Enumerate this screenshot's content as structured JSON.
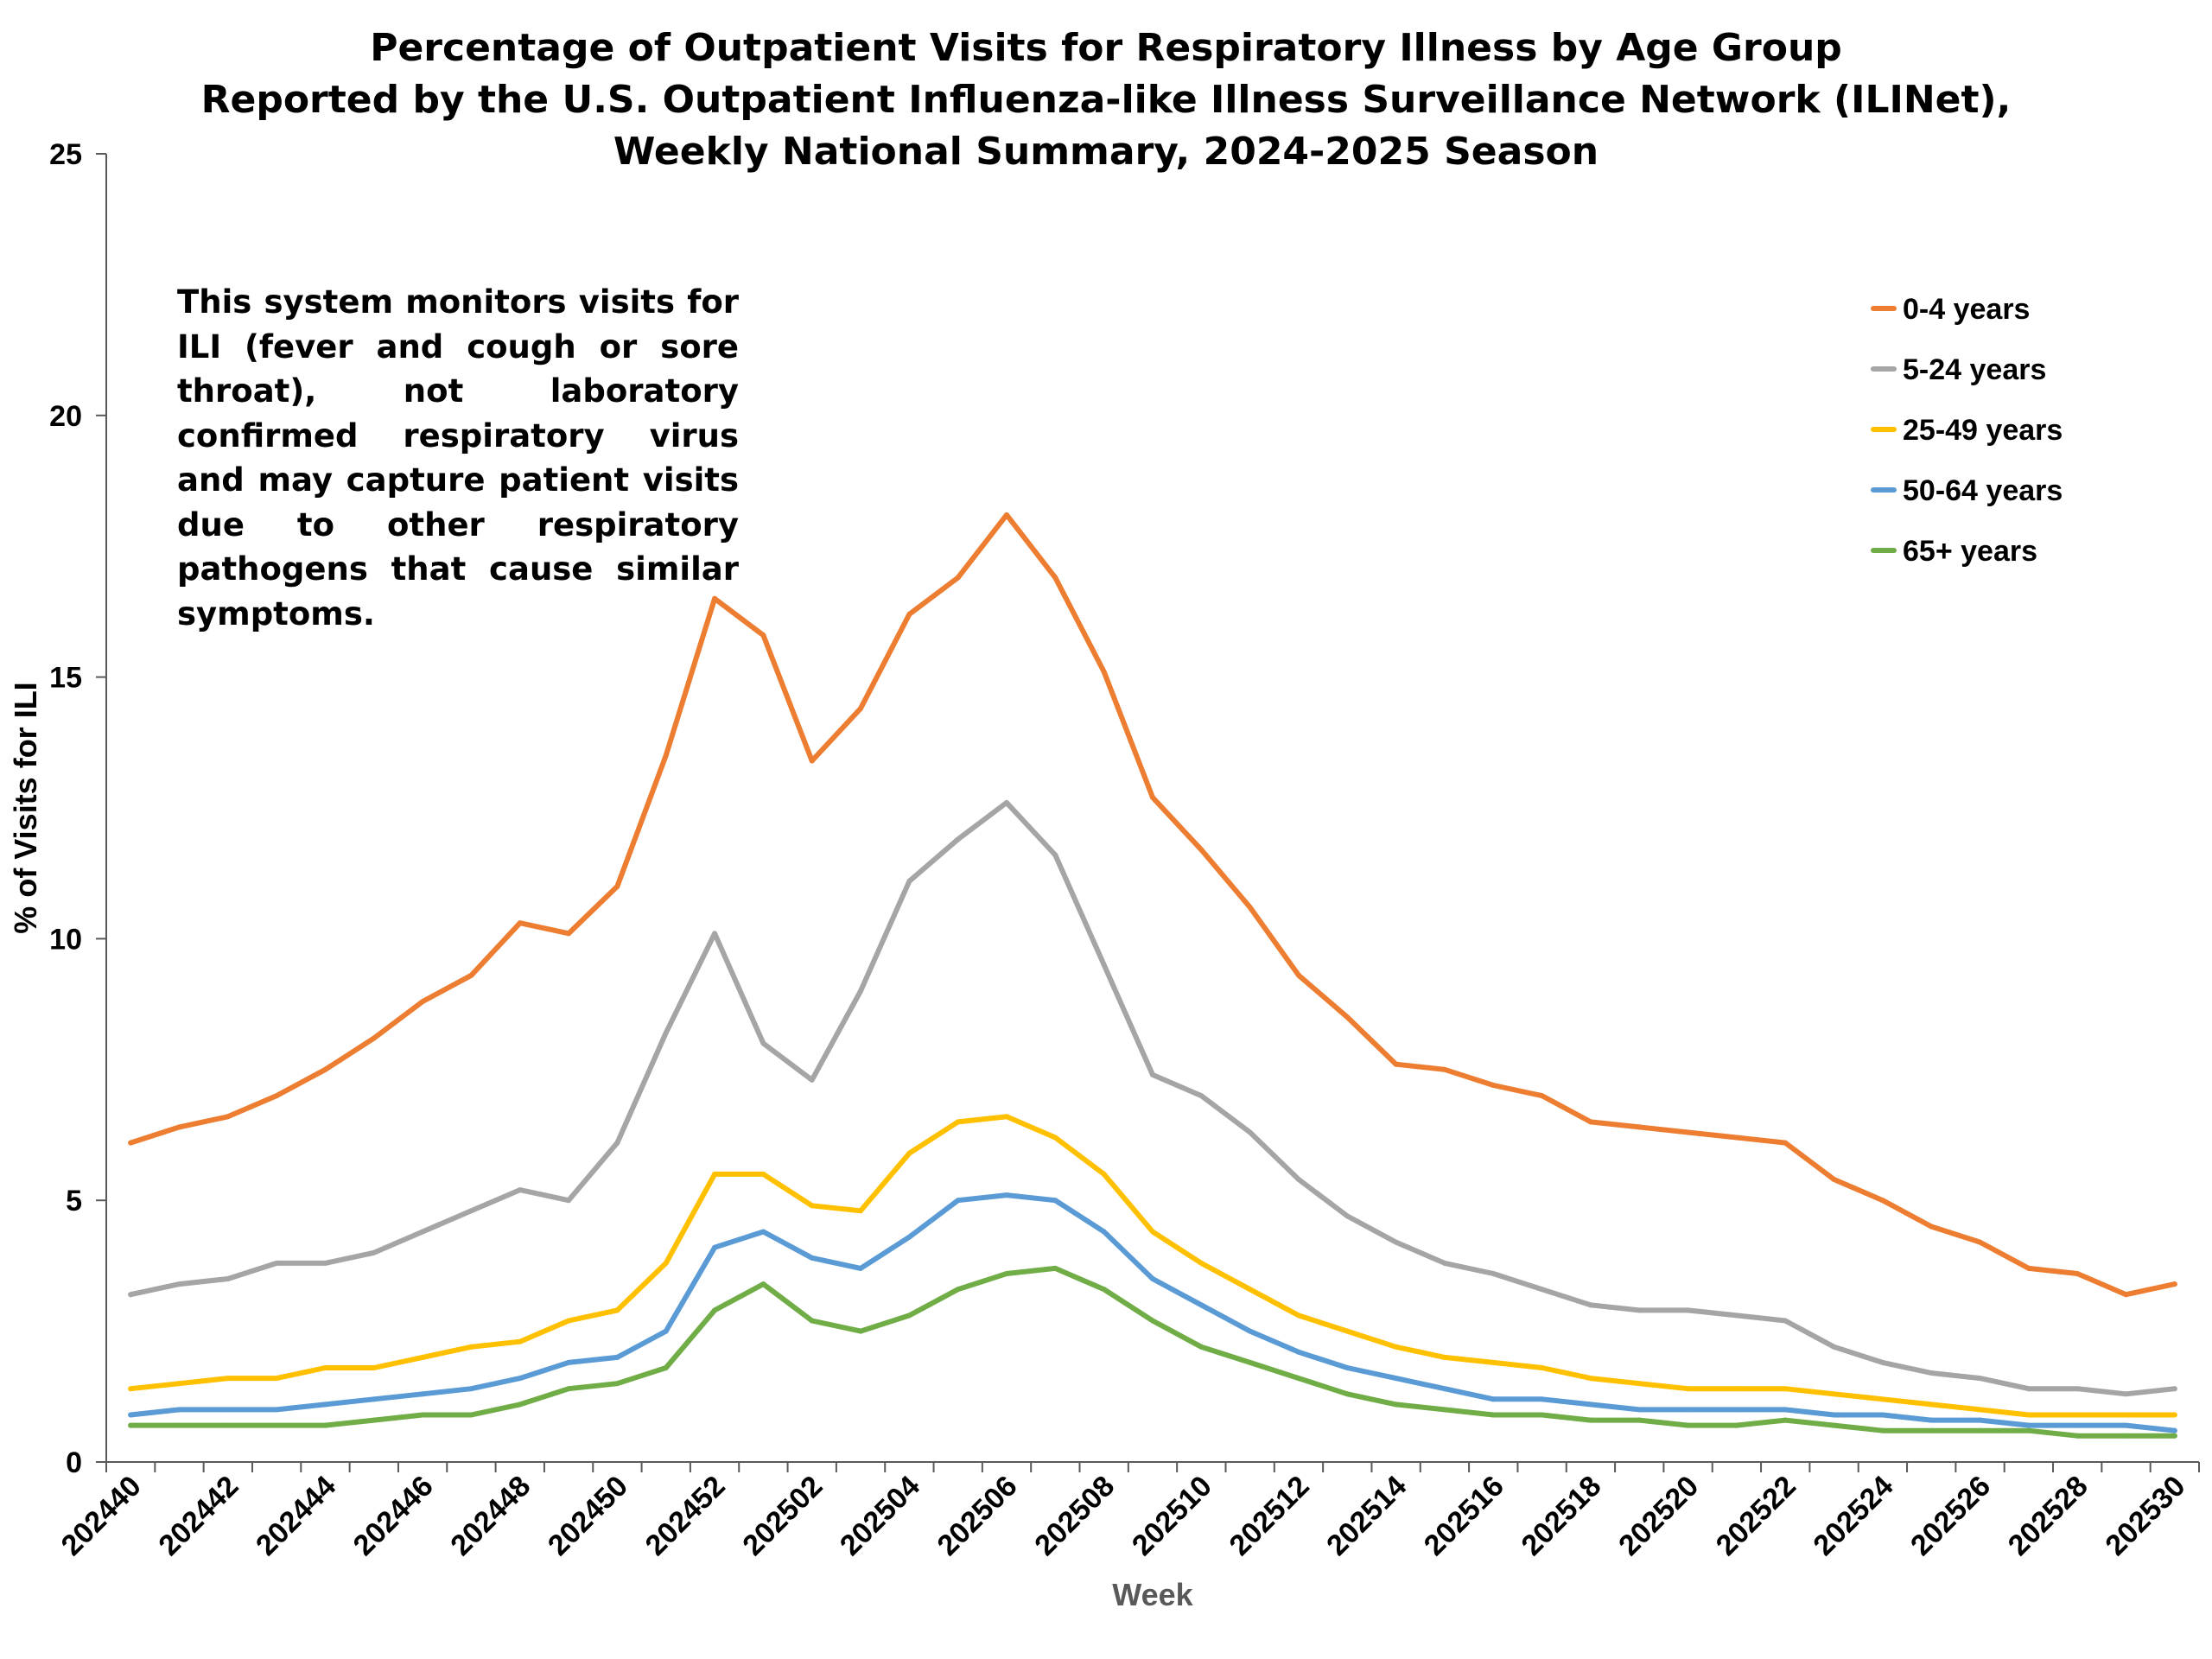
{
  "chart_data": {
    "type": "line",
    "title": [
      "Percentage of Outpatient Visits for Respiratory Illness by Age Group",
      "Reported by the U.S. Outpatient Influenza-like Illness Surveillance Network (ILINet),",
      "Weekly National Summary, 2024-2025 Season"
    ],
    "xlabel": "Week",
    "ylabel": "% of Visits for ILI",
    "ylim": [
      0,
      25
    ],
    "yticks": [
      "0",
      "5",
      "10",
      "15",
      "20",
      "25"
    ],
    "x": [
      "202440",
      "202441",
      "202442",
      "202443",
      "202444",
      "202445",
      "202446",
      "202447",
      "202448",
      "202449",
      "202450",
      "202451",
      "202452",
      "202501",
      "202502",
      "202503",
      "202504",
      "202505",
      "202506",
      "202507",
      "202508",
      "202509",
      "202510",
      "202511",
      "202512",
      "202513",
      "202514",
      "202515",
      "202516",
      "202517",
      "202518",
      "202519",
      "202520",
      "202521",
      "202522",
      "202523",
      "202524",
      "202525",
      "202526",
      "202527",
      "202528",
      "202529",
      "202530"
    ],
    "xticklabels": [
      "202440",
      "202442",
      "202444",
      "202446",
      "202448",
      "202450",
      "202452",
      "202502",
      "202504",
      "202506",
      "202508",
      "202510",
      "202512",
      "202514",
      "202516",
      "202518",
      "202520",
      "202522",
      "202524",
      "202526",
      "202528",
      "202530"
    ],
    "legend_position": "top-right",
    "annotation": "This system monitors visits for ILI (fever and cough or sore throat), not laboratory confirmed respiratory virus and may capture patient visits due to other respiratory pathogens that cause similar symptoms.",
    "series": [
      {
        "name": "0-4 years",
        "color": "#ED7D31",
        "values": [
          6.1,
          6.4,
          6.6,
          7.0,
          7.5,
          8.1,
          8.8,
          9.3,
          10.3,
          10.1,
          11.0,
          13.5,
          16.5,
          15.8,
          13.4,
          14.4,
          16.2,
          16.9,
          18.1,
          16.9,
          15.1,
          12.7,
          11.7,
          10.6,
          9.3,
          8.5,
          7.6,
          7.5,
          7.2,
          7.0,
          6.5,
          6.4,
          6.3,
          6.2,
          6.1,
          5.4,
          5.0,
          4.5,
          4.2,
          3.7,
          3.6,
          3.2,
          3.4
        ]
      },
      {
        "name": "5-24 years",
        "color": "#A5A5A5",
        "values": [
          3.2,
          3.4,
          3.5,
          3.8,
          3.8,
          4.0,
          4.4,
          4.8,
          5.2,
          5.0,
          6.1,
          8.2,
          10.1,
          8.0,
          7.3,
          9.0,
          11.1,
          11.9,
          12.6,
          11.6,
          9.5,
          7.4,
          7.0,
          6.3,
          5.4,
          4.7,
          4.2,
          3.8,
          3.6,
          3.3,
          3.0,
          2.9,
          2.9,
          2.8,
          2.7,
          2.2,
          1.9,
          1.7,
          1.6,
          1.4,
          1.4,
          1.3,
          1.4
        ]
      },
      {
        "name": "25-49 years",
        "color": "#FFC000",
        "values": [
          1.4,
          1.5,
          1.6,
          1.6,
          1.8,
          1.8,
          2.0,
          2.2,
          2.3,
          2.7,
          2.9,
          3.8,
          5.5,
          5.5,
          4.9,
          4.8,
          5.9,
          6.5,
          6.6,
          6.2,
          5.5,
          4.4,
          3.8,
          3.3,
          2.8,
          2.5,
          2.2,
          2.0,
          1.9,
          1.8,
          1.6,
          1.5,
          1.4,
          1.4,
          1.4,
          1.3,
          1.2,
          1.1,
          1.0,
          0.9,
          0.9,
          0.9,
          0.9
        ]
      },
      {
        "name": "50-64 years",
        "color": "#5B9BD5",
        "values": [
          0.9,
          1.0,
          1.0,
          1.0,
          1.1,
          1.2,
          1.3,
          1.4,
          1.6,
          1.9,
          2.0,
          2.5,
          4.1,
          4.4,
          3.9,
          3.7,
          4.3,
          5.0,
          5.1,
          5.0,
          4.4,
          3.5,
          3.0,
          2.5,
          2.1,
          1.8,
          1.6,
          1.4,
          1.2,
          1.2,
          1.1,
          1.0,
          1.0,
          1.0,
          1.0,
          0.9,
          0.9,
          0.8,
          0.8,
          0.7,
          0.7,
          0.7,
          0.6
        ]
      },
      {
        "name": "65+ years",
        "color": "#70AD47",
        "values": [
          0.7,
          0.7,
          0.7,
          0.7,
          0.7,
          0.8,
          0.9,
          0.9,
          1.1,
          1.4,
          1.5,
          1.8,
          2.9,
          3.4,
          2.7,
          2.5,
          2.8,
          3.3,
          3.6,
          3.7,
          3.3,
          2.7,
          2.2,
          1.9,
          1.6,
          1.3,
          1.1,
          1.0,
          0.9,
          0.9,
          0.8,
          0.8,
          0.7,
          0.7,
          0.8,
          0.7,
          0.6,
          0.6,
          0.6,
          0.6,
          0.5,
          0.5,
          0.5
        ]
      }
    ]
  }
}
